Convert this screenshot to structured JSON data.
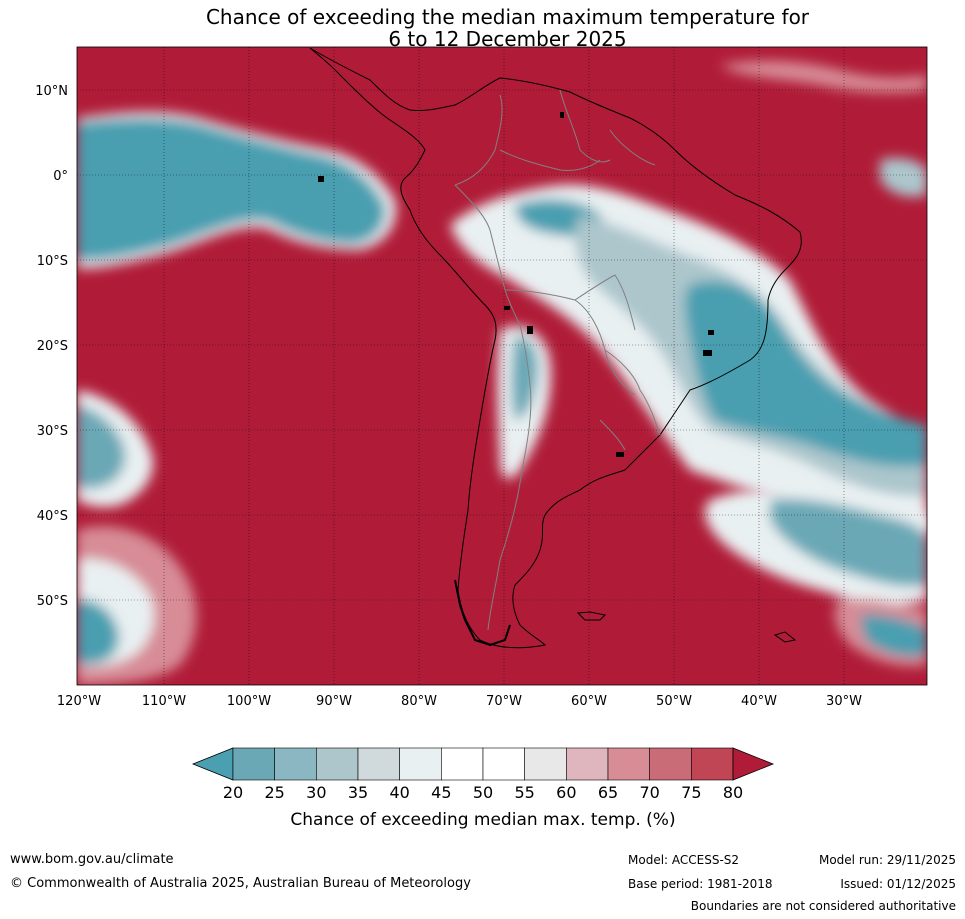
{
  "title_line1": "Chance of exceeding the median maximum temperature for",
  "title_line2": "6 to 12 December 2025",
  "lat_labels": [
    "10°N",
    "0°",
    "10°S",
    "20°S",
    "30°S",
    "40°S",
    "50°S"
  ],
  "lon_labels": [
    "120°W",
    "110°W",
    "100°W",
    "90°W",
    "80°W",
    "70°W",
    "60°W",
    "50°W",
    "40°W",
    "30°W"
  ],
  "colorbar": {
    "ticks": [
      "20",
      "25",
      "30",
      "35",
      "40",
      "45",
      "50",
      "55",
      "60",
      "65",
      "70",
      "75",
      "80"
    ],
    "colors": [
      "#4a9fb0",
      "#6aa8b6",
      "#8bb7c3",
      "#acc6cc",
      "#d0d9db",
      "#e9f0f2",
      "#ffffff",
      "#ffffff",
      "#e8e8e8",
      "#dfb6bd",
      "#d78c96",
      "#c96c78",
      "#c04555",
      "#b01c38"
    ],
    "label": "Chance of exceeding median max. temp. (%)"
  },
  "footer": {
    "url": "www.bom.gov.au/climate",
    "copyright": "© Commonwealth of Australia 2025, Australian Bureau of Meteorology",
    "model": "Model: ACCESS-S2",
    "base_period": "Base period: 1981-2018",
    "model_run": "Model run: 29/11/2025",
    "issued": "Issued: 01/12/2025",
    "disclaimer": "Boundaries are not considered authoritative"
  }
}
